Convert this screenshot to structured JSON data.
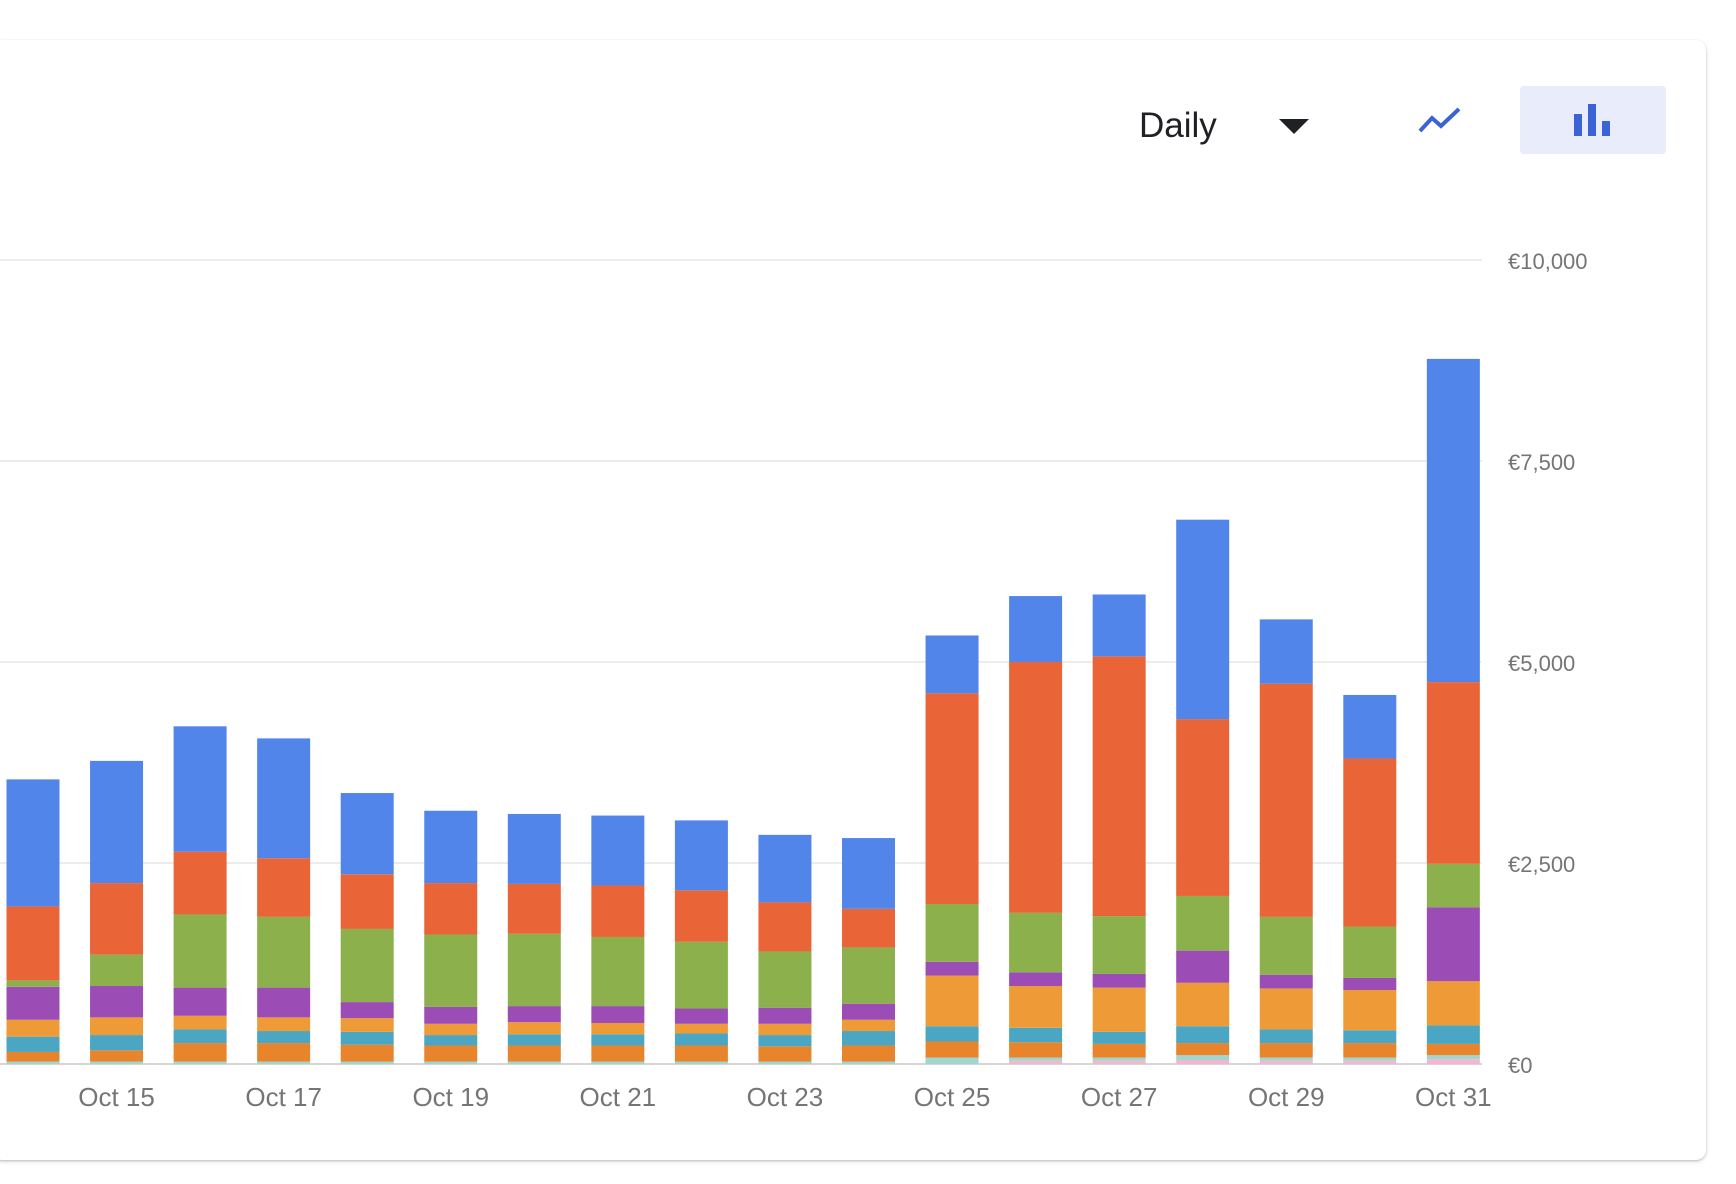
{
  "toolbar": {
    "period_label": "Daily",
    "line_view_icon": "line-chart-icon",
    "bar_view_icon": "bar-chart-icon",
    "active_view": "bar",
    "accent_color": "#3b63d6"
  },
  "chart_data": {
    "type": "bar",
    "stacked": true,
    "categories": [
      "Oct 14",
      "Oct 15",
      "Oct 16",
      "Oct 17",
      "Oct 18",
      "Oct 19",
      "Oct 20",
      "Oct 21",
      "Oct 22",
      "Oct 23",
      "Oct 24",
      "Oct 25",
      "Oct 26",
      "Oct 27",
      "Oct 28",
      "Oct 29",
      "Oct 30",
      "Oct 31"
    ],
    "x_tick_labels": [
      "Oct 15",
      "Oct 17",
      "Oct 19",
      "Oct 21",
      "Oct 23",
      "Oct 25",
      "Oct 27",
      "Oct 29",
      "Oct 31"
    ],
    "y_tick_labels": [
      "€0",
      "€2,500",
      "€5,000",
      "€7,500",
      "€10,000"
    ],
    "y_ticks": [
      0,
      2500,
      5000,
      7500,
      10000
    ],
    "ylim": [
      0,
      10000
    ],
    "grid": true,
    "series_colors": [
      "#f4b6cf",
      "#9fd6cf",
      "#e8842c",
      "#4aa6c3",
      "#ee9a37",
      "#9b4cb5",
      "#8bb04c",
      "#e96437",
      "#5285ea"
    ],
    "series": [
      {
        "values": [
          0,
          0,
          0,
          0,
          0,
          0,
          0,
          0,
          0,
          0,
          0,
          0,
          40,
          40,
          50,
          40,
          40,
          60
        ]
      },
      {
        "values": [
          30,
          30,
          30,
          30,
          30,
          30,
          30,
          30,
          30,
          30,
          30,
          80,
          40,
          40,
          60,
          40,
          40,
          50
        ]
      },
      {
        "values": [
          120,
          140,
          230,
          230,
          210,
          200,
          200,
          200,
          200,
          190,
          200,
          200,
          190,
          170,
          150,
          180,
          180,
          140
        ]
      },
      {
        "values": [
          190,
          190,
          170,
          150,
          160,
          130,
          140,
          140,
          150,
          140,
          180,
          190,
          180,
          150,
          210,
          170,
          160,
          230
        ]
      },
      {
        "values": [
          210,
          220,
          170,
          170,
          170,
          140,
          150,
          140,
          120,
          140,
          140,
          630,
          520,
          550,
          540,
          510,
          500,
          550
        ]
      },
      {
        "values": [
          410,
          390,
          350,
          370,
          200,
          210,
          200,
          210,
          190,
          200,
          200,
          170,
          170,
          170,
          400,
          170,
          150,
          920
        ]
      },
      {
        "values": [
          80,
          390,
          910,
          880,
          910,
          900,
          900,
          860,
          830,
          700,
          700,
          720,
          740,
          720,
          680,
          720,
          640,
          540
        ]
      },
      {
        "values": [
          920,
          890,
          780,
          730,
          680,
          640,
          620,
          640,
          640,
          610,
          480,
          2620,
          3120,
          3230,
          2200,
          2900,
          2090,
          2260
        ]
      },
      {
        "values": [
          1580,
          1520,
          1560,
          1490,
          1010,
          900,
          870,
          870,
          870,
          840,
          880,
          720,
          820,
          770,
          2480,
          800,
          790,
          4020
        ]
      }
    ]
  }
}
